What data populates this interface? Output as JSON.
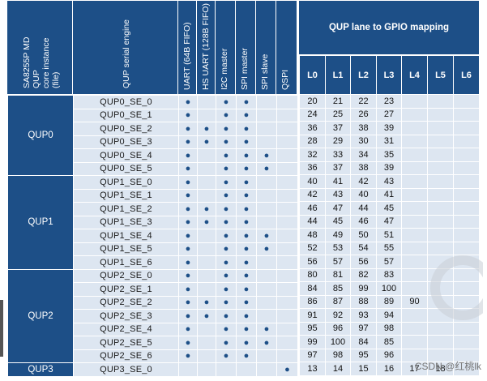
{
  "left_header": {
    "instance_title": "SA8255P MD QUP\ncore instance (file)",
    "engine_title": "QUP serial engine"
  },
  "features": [
    "UART (64B FIFO)",
    "HS UART (128B FIFO)",
    "I2C master",
    "SPI master",
    "SPI slave",
    "QSPI"
  ],
  "lane_title": "QUP lane to GPIO mapping",
  "lanes": [
    "L0",
    "L1",
    "L2",
    "L3",
    "L4",
    "L5",
    "L6"
  ],
  "dot": "●",
  "groups": [
    {
      "name": "QUP0",
      "rows": [
        {
          "se": "QUP0_SE_0",
          "f": [
            1,
            0,
            1,
            1,
            0,
            0
          ],
          "g": [
            "20",
            "21",
            "22",
            "23",
            "",
            "",
            ""
          ]
        },
        {
          "se": "QUP0_SE_1",
          "f": [
            1,
            0,
            1,
            1,
            0,
            0
          ],
          "g": [
            "24",
            "25",
            "26",
            "27",
            "",
            "",
            ""
          ]
        },
        {
          "se": "QUP0_SE_2",
          "f": [
            1,
            1,
            1,
            1,
            0,
            0
          ],
          "g": [
            "36",
            "37",
            "38",
            "39",
            "",
            "",
            ""
          ]
        },
        {
          "se": "QUP0_SE_3",
          "f": [
            1,
            1,
            1,
            1,
            0,
            0
          ],
          "g": [
            "28",
            "29",
            "30",
            "31",
            "",
            "",
            ""
          ]
        },
        {
          "se": "QUP0_SE_4",
          "f": [
            1,
            0,
            1,
            1,
            1,
            0
          ],
          "g": [
            "32",
            "33",
            "34",
            "35",
            "",
            "",
            ""
          ]
        },
        {
          "se": "QUP0_SE_5",
          "f": [
            1,
            0,
            1,
            1,
            1,
            0
          ],
          "g": [
            "36",
            "37",
            "38",
            "39",
            "",
            "",
            ""
          ]
        }
      ]
    },
    {
      "name": "QUP1",
      "rows": [
        {
          "se": "QUP1_SE_0",
          "f": [
            1,
            0,
            1,
            1,
            0,
            0
          ],
          "g": [
            "40",
            "41",
            "42",
            "43",
            "",
            "",
            ""
          ]
        },
        {
          "se": "QUP1_SE_1",
          "f": [
            1,
            0,
            1,
            1,
            0,
            0
          ],
          "g": [
            "42",
            "43",
            "40",
            "41",
            "",
            "",
            ""
          ]
        },
        {
          "se": "QUP1_SE_2",
          "f": [
            1,
            1,
            1,
            1,
            0,
            0
          ],
          "g": [
            "46",
            "47",
            "44",
            "45",
            "",
            "",
            ""
          ]
        },
        {
          "se": "QUP1_SE_3",
          "f": [
            1,
            1,
            1,
            1,
            0,
            0
          ],
          "g": [
            "44",
            "45",
            "46",
            "47",
            "",
            "",
            ""
          ]
        },
        {
          "se": "QUP1_SE_4",
          "f": [
            1,
            0,
            1,
            1,
            1,
            0
          ],
          "g": [
            "48",
            "49",
            "50",
            "51",
            "",
            "",
            ""
          ]
        },
        {
          "se": "QUP1_SE_5",
          "f": [
            1,
            0,
            1,
            1,
            1,
            0
          ],
          "g": [
            "52",
            "53",
            "54",
            "55",
            "",
            "",
            ""
          ]
        },
        {
          "se": "QUP1_SE_6",
          "f": [
            1,
            0,
            1,
            1,
            0,
            0
          ],
          "g": [
            "56",
            "57",
            "56",
            "57",
            "",
            "",
            ""
          ]
        }
      ]
    },
    {
      "name": "QUP2",
      "rows": [
        {
          "se": "QUP2_SE_0",
          "f": [
            1,
            0,
            1,
            1,
            0,
            0
          ],
          "g": [
            "80",
            "81",
            "82",
            "83",
            "",
            "",
            ""
          ]
        },
        {
          "se": "QUP2_SE_1",
          "f": [
            1,
            0,
            1,
            1,
            0,
            0
          ],
          "g": [
            "84",
            "85",
            "99",
            "100",
            "",
            "",
            ""
          ]
        },
        {
          "se": "QUP2_SE_2",
          "f": [
            1,
            1,
            1,
            1,
            0,
            0
          ],
          "g": [
            "86",
            "87",
            "88",
            "89",
            "90",
            "",
            ""
          ]
        },
        {
          "se": "QUP2_SE_3",
          "f": [
            1,
            1,
            1,
            1,
            0,
            0
          ],
          "g": [
            "91",
            "92",
            "93",
            "94",
            "",
            "",
            ""
          ]
        },
        {
          "se": "QUP2_SE_4",
          "f": [
            1,
            0,
            1,
            1,
            1,
            0
          ],
          "g": [
            "95",
            "96",
            "97",
            "98",
            "",
            "",
            ""
          ]
        },
        {
          "se": "QUP2_SE_5",
          "f": [
            1,
            0,
            1,
            1,
            1,
            0
          ],
          "g": [
            "99",
            "100",
            "84",
            "85",
            "",
            "",
            ""
          ]
        },
        {
          "se": "QUP2_SE_6",
          "f": [
            1,
            0,
            1,
            1,
            0,
            0
          ],
          "g": [
            "97",
            "98",
            "95",
            "96",
            "",
            "",
            ""
          ]
        }
      ]
    },
    {
      "name": "QUP3",
      "rows": [
        {
          "se": "QUP3_SE_0",
          "f": [
            0,
            0,
            0,
            0,
            0,
            1
          ],
          "g": [
            "13",
            "14",
            "15",
            "16",
            "17",
            "18",
            ""
          ]
        }
      ]
    }
  ],
  "watermark": "CSDN @红桃lk",
  "colors": {
    "header_blue": "#1d4f87",
    "cell_light": "#dde6f1",
    "dot": "#1d4f87"
  }
}
